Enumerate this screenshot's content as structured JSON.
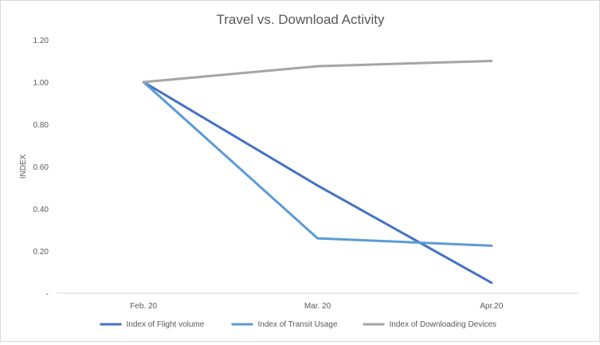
{
  "chart_data": {
    "type": "line",
    "title": "Travel vs. Download Activity",
    "xlabel": "",
    "ylabel": "INDEX",
    "categories": [
      "Feb. 20",
      "Mar. 20",
      "Apr.20"
    ],
    "ylim": [
      0,
      1.2
    ],
    "yticks": [
      0,
      0.2,
      0.4,
      0.6,
      0.8,
      1.0,
      1.2
    ],
    "ytick_labels": [
      "-",
      "0.20",
      "0.40",
      "0.60",
      "0.80",
      "1.00",
      "1.20"
    ],
    "grid": false,
    "legend": "bottom",
    "series": [
      {
        "name": "Index of Flight volume",
        "values": [
          1.0,
          0.51,
          0.05
        ],
        "color": "#4472c4"
      },
      {
        "name": "Index of Transit Usage",
        "values": [
          1.0,
          0.26,
          0.225
        ],
        "color": "#5b9bd5"
      },
      {
        "name": "Index of Downloading Devices",
        "values": [
          1.0,
          1.075,
          1.1
        ],
        "color": "#a5a5a5"
      }
    ]
  }
}
